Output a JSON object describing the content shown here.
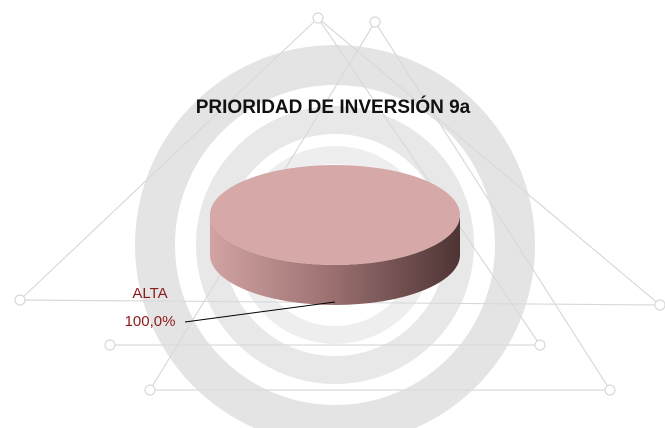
{
  "chart_data": {
    "type": "pie",
    "title": "PRIORIDAD DE INVERSIÓN 9a",
    "categories": [
      "ALTA"
    ],
    "values": [
      100
    ],
    "value_labels": [
      "100,0%"
    ],
    "colors": [
      "#d6a8a8"
    ],
    "label_color": "#8b1a1a"
  }
}
